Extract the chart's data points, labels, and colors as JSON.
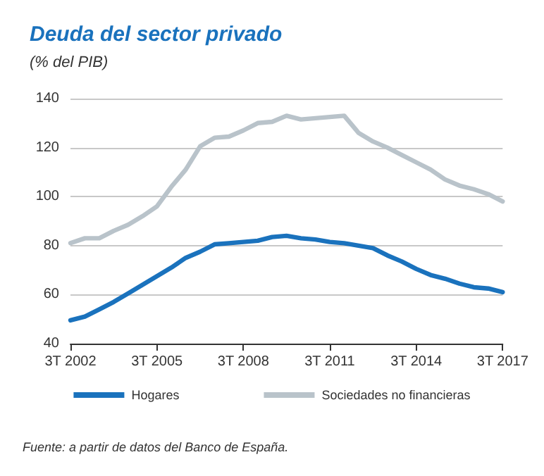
{
  "chart_data": {
    "type": "line",
    "title": "Deuda del sector privado",
    "subtitle": "(% del PIB)",
    "categories": [
      "3T 2002",
      null,
      null,
      null,
      null,
      null,
      "3T 2005",
      null,
      null,
      null,
      null,
      null,
      "3T 2008",
      null,
      null,
      null,
      null,
      null,
      "3T 2011",
      null,
      null,
      null,
      null,
      null,
      "3T 2014",
      null,
      null,
      null,
      null,
      null,
      "3T 2017"
    ],
    "series": [
      {
        "name": "Hogares",
        "color": "#1a72bd",
        "values": [
          49.5,
          51,
          54,
          57,
          60.5,
          64,
          67.5,
          71,
          75,
          77.5,
          80.5,
          81,
          81.5,
          82,
          83.5,
          84,
          83,
          82.5,
          81.5,
          81,
          80,
          79,
          76,
          73.5,
          70.5,
          68,
          66.5,
          64.5,
          63,
          62.5,
          61
        ]
      },
      {
        "name": "Sociedades no financieras",
        "color": "#b9c3ca",
        "values": [
          81,
          83,
          83,
          86,
          88.5,
          92,
          96,
          104,
          111,
          120.5,
          124,
          124.5,
          127,
          130,
          130.5,
          133,
          131.5,
          132,
          132.5,
          133,
          126,
          122.5,
          120,
          117,
          114,
          111,
          107,
          104.5,
          103,
          101,
          98
        ]
      }
    ],
    "ylim": [
      40,
      140
    ],
    "yticks": [
      40,
      60,
      80,
      100,
      120,
      140
    ],
    "grid": "y",
    "legend": "bottom",
    "marker": "none",
    "line_style": "solid",
    "annotations": [
      "Fuente: a partir de datos del Banco de España."
    ]
  }
}
